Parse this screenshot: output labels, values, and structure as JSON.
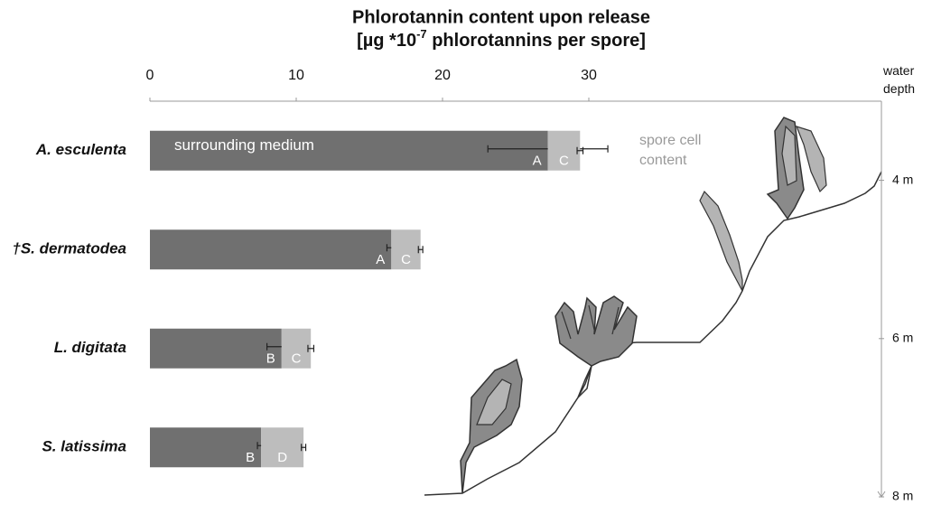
{
  "chart_data": {
    "type": "stacked_bar_horizontal",
    "title": "Phlorotannin content upon release",
    "x_label": {
      "before": "[µg *10",
      "sup": "-7",
      "after": " phlorotannins per spore]"
    },
    "categories": [
      "A. esculenta",
      "†S. dermatodea",
      "L. digitata",
      "S. latissima"
    ],
    "series": [
      {
        "name": "surrounding medium",
        "color": "#707070",
        "values": [
          27.2,
          16.5,
          9.0,
          7.6
        ],
        "errors": [
          4.1,
          0.3,
          1.0,
          0.25
        ],
        "letters": [
          "A",
          "A",
          "B",
          "B"
        ]
      },
      {
        "name": "spore cell content",
        "color": "#bdbdbd",
        "values": [
          2.2,
          2.0,
          2.0,
          2.9
        ],
        "errors": [
          0.2,
          0.15,
          0.2,
          0.15
        ],
        "letters": [
          "C",
          "C",
          "C",
          "D"
        ]
      }
    ],
    "xlim": [
      0,
      50
    ],
    "xticks": [
      0,
      10,
      20,
      30
    ],
    "depth_axis": {
      "label": "water depth",
      "lim": [
        3,
        8
      ],
      "ticks": [
        {
          "value": 4,
          "label": "4 m"
        },
        {
          "value": 6,
          "label": "6 m"
        },
        {
          "value": 8,
          "label": "8 m"
        }
      ]
    }
  }
}
